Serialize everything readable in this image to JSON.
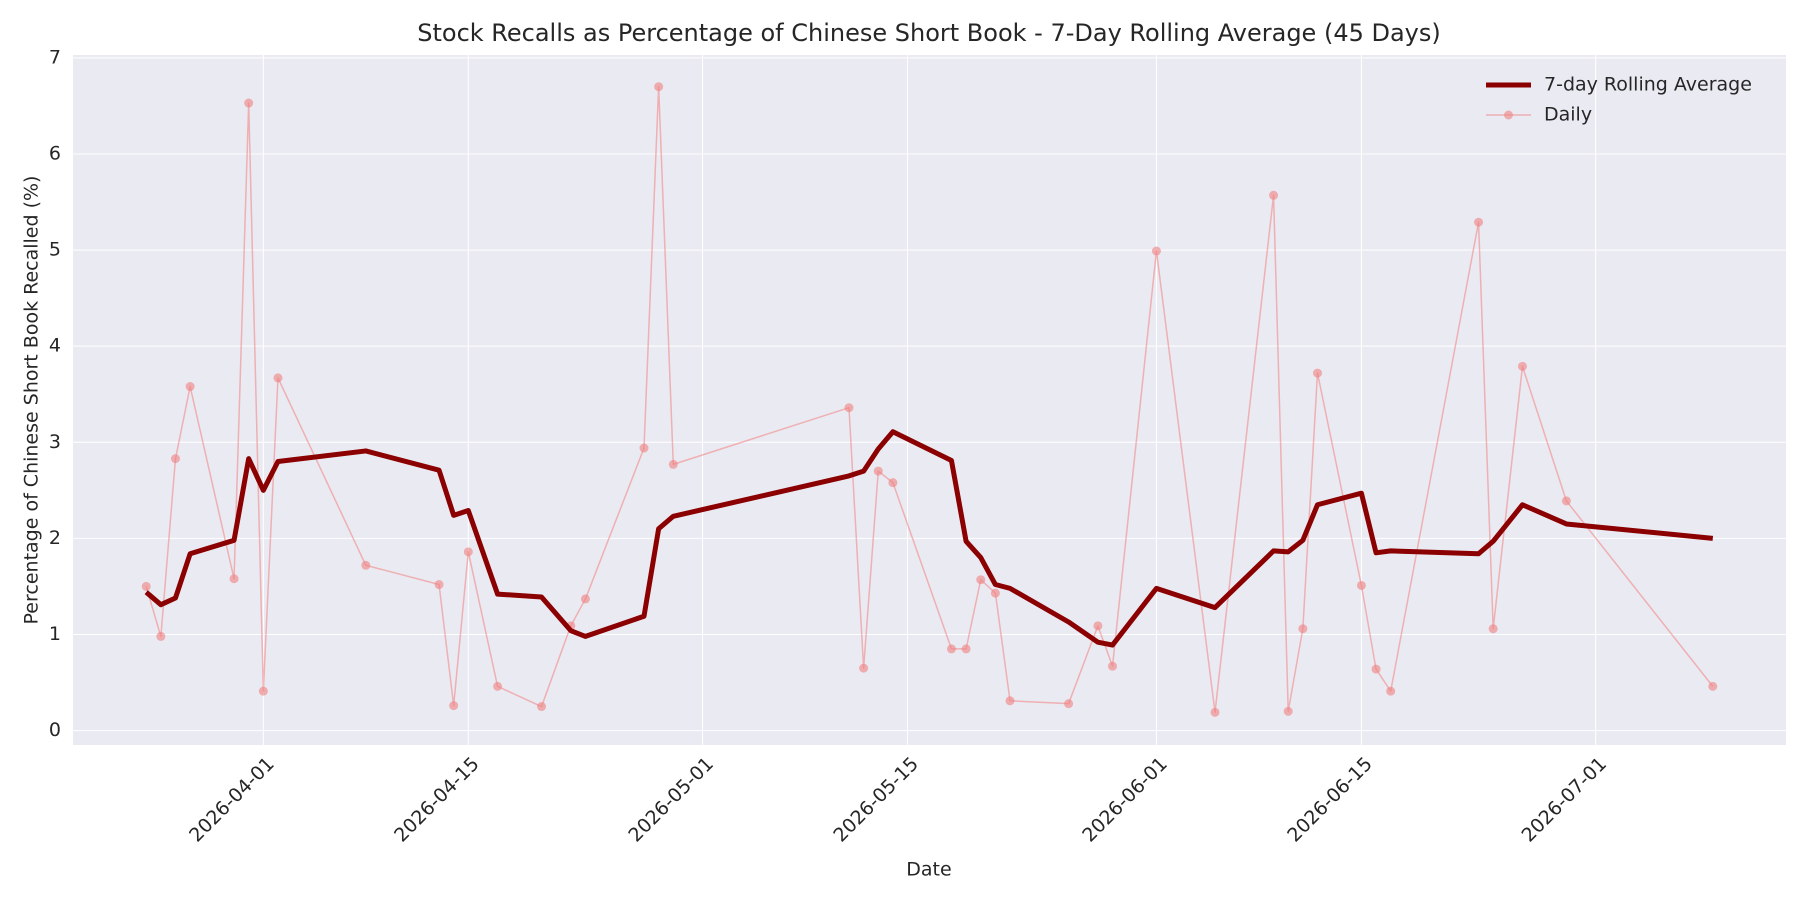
{
  "chart_data": {
    "type": "line",
    "title": "Stock Recalls as Percentage of Chinese Short Book - 7-Day Rolling Average (45 Days)",
    "xlabel": "Date",
    "ylabel": "Percentage of Chinese Short Book Recalled (%)",
    "x": [
      "2026-03-24",
      "2026-03-25",
      "2026-03-26",
      "2026-03-27",
      "2026-03-30",
      "2026-03-31",
      "2026-04-01",
      "2026-04-02",
      "2026-04-08",
      "2026-04-13",
      "2026-04-14",
      "2026-04-15",
      "2026-04-17",
      "2026-04-20",
      "2026-04-22",
      "2026-04-23",
      "2026-04-27",
      "2026-04-28",
      "2026-04-29",
      "2026-05-11",
      "2026-05-12",
      "2026-05-13",
      "2026-05-14",
      "2026-05-18",
      "2026-05-19",
      "2026-05-20",
      "2026-05-21",
      "2026-05-22",
      "2026-05-26",
      "2026-05-28",
      "2026-05-29",
      "2026-06-01",
      "2026-06-05",
      "2026-06-09",
      "2026-06-10",
      "2026-06-11",
      "2026-06-12",
      "2026-06-15",
      "2026-06-16",
      "2026-06-17",
      "2026-06-23",
      "2026-06-24",
      "2026-06-26",
      "2026-06-29",
      "2026-07-09"
    ],
    "series": [
      {
        "name": "7-day Rolling Average",
        "color": "#8b0000",
        "line_width": 5,
        "markers": false,
        "values": [
          1.44,
          1.31,
          1.38,
          1.84,
          1.98,
          2.83,
          2.5,
          2.8,
          2.91,
          2.71,
          2.24,
          2.29,
          1.42,
          1.39,
          1.04,
          0.98,
          1.19,
          2.1,
          2.23,
          2.65,
          2.7,
          2.93,
          3.11,
          2.81,
          1.97,
          1.8,
          1.52,
          1.48,
          1.13,
          0.92,
          0.89,
          1.48,
          1.28,
          1.87,
          1.86,
          1.98,
          2.35,
          2.47,
          1.85,
          1.87,
          1.84,
          1.97,
          2.35,
          2.15,
          2.0
        ]
      },
      {
        "name": "Daily",
        "color": "#f08080",
        "line_width": 1.5,
        "markers": true,
        "values": [
          1.5,
          0.98,
          2.83,
          3.58,
          1.58,
          6.53,
          0.41,
          3.67,
          1.72,
          1.52,
          0.26,
          1.86,
          0.46,
          0.25,
          1.09,
          1.37,
          2.94,
          6.7,
          2.77,
          3.36,
          0.65,
          2.7,
          2.58,
          0.85,
          0.85,
          1.57,
          1.43,
          0.31,
          0.28,
          1.09,
          0.67,
          4.99,
          0.19,
          5.57,
          0.2,
          1.06,
          3.72,
          1.51,
          0.64,
          0.41,
          5.29,
          1.06,
          3.79,
          2.39,
          0.46
        ]
      }
    ],
    "xlim": [
      "2026-03-19",
      "2026-07-14"
    ],
    "xticks": [
      "2026-04-01",
      "2026-04-15",
      "2026-05-01",
      "2026-05-15",
      "2026-06-01",
      "2026-06-15",
      "2026-07-01"
    ],
    "ylim": [
      -0.15,
      7.03
    ],
    "yticks": [
      0,
      1,
      2,
      3,
      4,
      5,
      6,
      7
    ],
    "grid": true,
    "legend": "upper right"
  }
}
